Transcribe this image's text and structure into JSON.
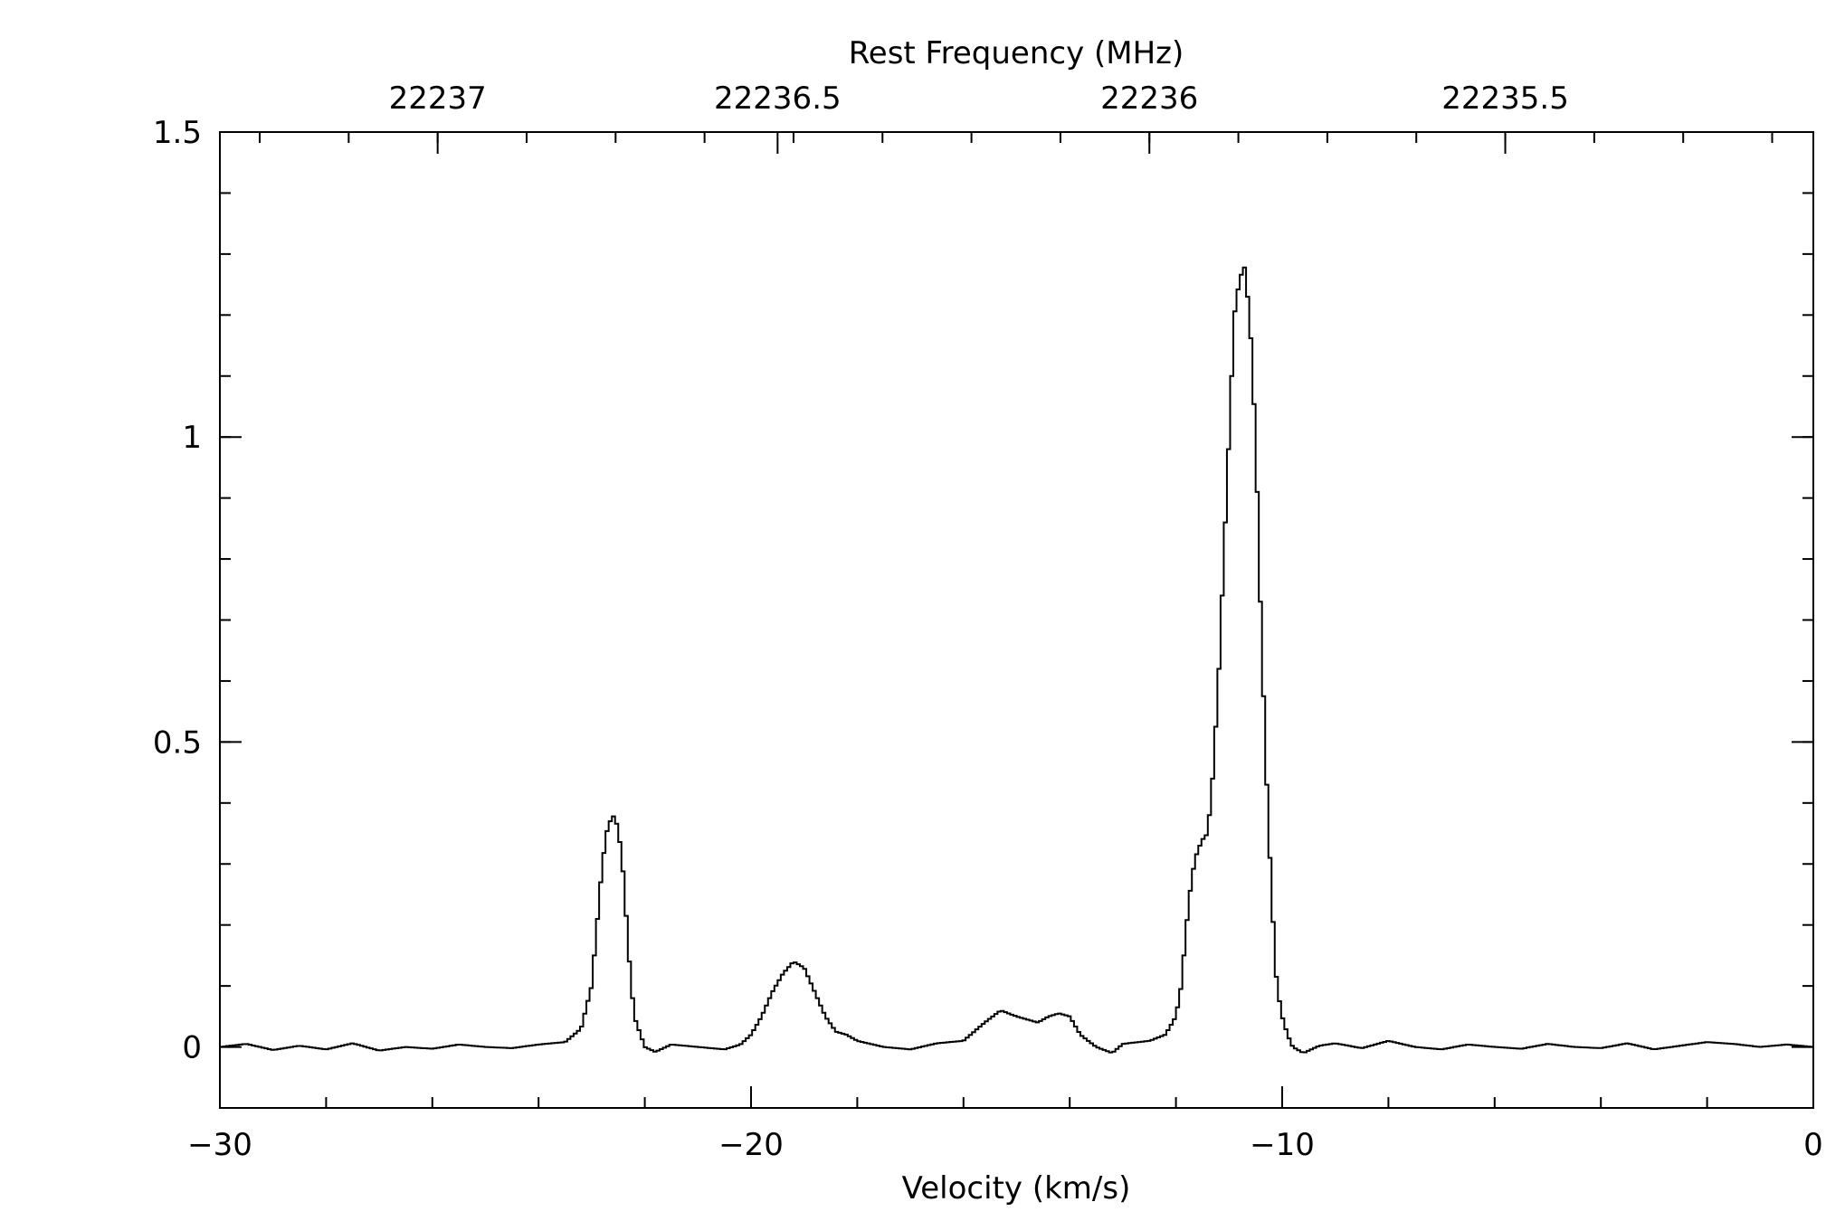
{
  "chart_data": {
    "type": "line",
    "style": "step",
    "xlabel": "Velocity (km/s)",
    "x2label": "Rest Frequency (MHz)",
    "ylabel": "",
    "xlim": [
      -30,
      0
    ],
    "ylim": [
      -0.1,
      1.5
    ],
    "x_ticks": [
      {
        "value": -30,
        "label": "−30"
      },
      {
        "value": -20,
        "label": "−20"
      },
      {
        "value": -10,
        "label": "−10"
      },
      {
        "value": 0,
        "label": "0"
      }
    ],
    "y_ticks": [
      {
        "value": 0,
        "label": "0"
      },
      {
        "value": 0.5,
        "label": "0.5"
      },
      {
        "value": 1,
        "label": "1"
      },
      {
        "value": 1.5,
        "label": "1.5"
      }
    ],
    "freq_ticks": [
      {
        "frequency": 22237,
        "velocity": -25.9,
        "label": "22237"
      },
      {
        "frequency": 22236.5,
        "velocity": -19.5,
        "label": "22236.5"
      },
      {
        "frequency": 22236,
        "velocity": -12.5,
        "label": "22236"
      },
      {
        "frequency": 22235.5,
        "velocity": -5.8,
        "label": "22235.5"
      }
    ],
    "features": [
      {
        "velocity": -22.6,
        "peak": 0.38
      },
      {
        "velocity": -19.0,
        "peak": 0.14
      },
      {
        "velocity": -15.0,
        "peak": 0.06
      },
      {
        "velocity": -14.1,
        "peak": 0.055
      },
      {
        "velocity": -11.6,
        "peak": 0.34
      },
      {
        "velocity": -10.7,
        "peak": 1.28
      }
    ],
    "series": [
      {
        "x": [
          -30,
          -29.5,
          -29,
          -28.5,
          -28,
          -27.5,
          -27,
          -26.5,
          -26,
          -25.5,
          -25,
          -24.5,
          -24,
          -23.5,
          -23.2,
          -23.0,
          -22.9,
          -22.8,
          -22.7,
          -22.6,
          -22.5,
          -22.4,
          -22.3,
          -22.2,
          -22.0,
          -21.8,
          -21.5,
          -21.0,
          -20.5,
          -20.2,
          -20.0,
          -19.8,
          -19.6,
          -19.4,
          -19.2,
          -19.0,
          -18.8,
          -18.6,
          -18.4,
          -18.2,
          -18.0,
          -17.5,
          -17.0,
          -16.5,
          -16.0,
          -15.6,
          -15.3,
          -15.0,
          -14.8,
          -14.6,
          -14.4,
          -14.2,
          -14.0,
          -13.8,
          -13.5,
          -13.2,
          -13.0,
          -12.5,
          -12.2,
          -12.0,
          -11.9,
          -11.8,
          -11.7,
          -11.6,
          -11.5,
          -11.4,
          -11.3,
          -11.2,
          -11.1,
          -11.0,
          -10.9,
          -10.8,
          -10.7,
          -10.6,
          -10.5,
          -10.4,
          -10.3,
          -10.2,
          -10.1,
          -10.0,
          -9.9,
          -9.8,
          -9.6,
          -9.3,
          -9.0,
          -8.5,
          -8.0,
          -7.5,
          -7.0,
          -6.5,
          -6.0,
          -5.5,
          -5.0,
          -4.5,
          -4.0,
          -3.5,
          -3.0,
          -2.5,
          -2.0,
          -1.5,
          -1.0,
          -0.5,
          0
        ],
        "y": [
          0.0,
          0.005,
          -0.005,
          0.002,
          -0.004,
          0.006,
          -0.006,
          0.0,
          -0.003,
          0.004,
          0.0,
          -0.002,
          0.004,
          0.008,
          0.03,
          0.1,
          0.2,
          0.3,
          0.36,
          0.38,
          0.36,
          0.28,
          0.15,
          0.05,
          0.0,
          -0.008,
          0.004,
          0.0,
          -0.004,
          0.004,
          0.02,
          0.05,
          0.09,
          0.12,
          0.14,
          0.13,
          0.09,
          0.05,
          0.025,
          0.02,
          0.01,
          0.0,
          -0.004,
          0.006,
          0.01,
          0.04,
          0.06,
          0.05,
          0.045,
          0.04,
          0.05,
          0.055,
          0.05,
          0.02,
          0.0,
          -0.01,
          0.005,
          0.01,
          0.02,
          0.05,
          0.1,
          0.2,
          0.28,
          0.32,
          0.34,
          0.35,
          0.45,
          0.6,
          0.8,
          1.0,
          1.2,
          1.26,
          1.28,
          1.18,
          1.0,
          0.7,
          0.45,
          0.25,
          0.1,
          0.05,
          0.02,
          0.0,
          -0.01,
          0.002,
          0.006,
          -0.002,
          0.01,
          0.0,
          -0.004,
          0.004,
          0.0,
          -0.003,
          0.005,
          0.0,
          -0.002,
          0.006,
          -0.004,
          0.002,
          0.008,
          0.005,
          0.0,
          0.004,
          0.0
        ]
      }
    ]
  }
}
